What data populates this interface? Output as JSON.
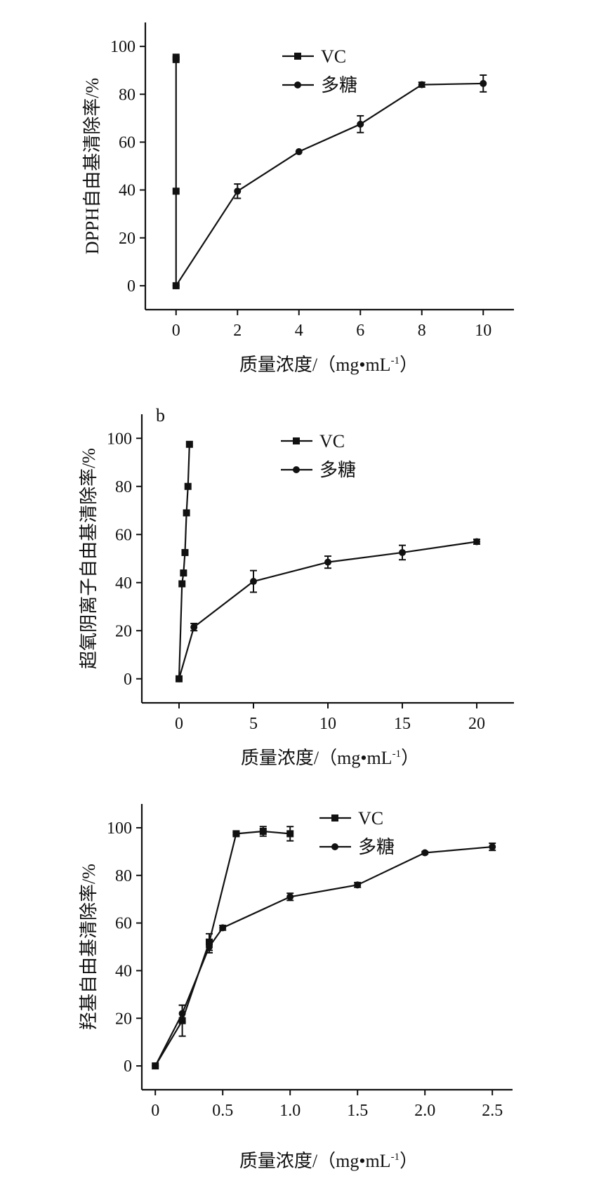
{
  "chart_data": [
    {
      "type": "line",
      "panel_label": "",
      "xlabel": "质量浓度/（mg•mL-1）",
      "ylabel": "DPPH自由基清除率/%",
      "xlim": [
        -1,
        11
      ],
      "ylim": [
        -10,
        110
      ],
      "xticks": [
        0,
        2,
        4,
        6,
        8,
        10
      ],
      "xtick_labels": [
        "0",
        "2",
        "4",
        "6",
        "8",
        "10"
      ],
      "yticks": [
        0,
        20,
        40,
        60,
        80,
        100
      ],
      "ytick_labels": [
        "0",
        "20",
        "40",
        "60",
        "80",
        "100"
      ],
      "legend_position": "top-center",
      "series": [
        {
          "name": "VC",
          "marker": "square",
          "x": [
            0,
            0,
            0,
            0
          ],
          "y": [
            0,
            39.5,
            94.5,
            95.5
          ],
          "err": [
            0,
            0,
            0,
            0
          ]
        },
        {
          "name": "多糖",
          "marker": "circle",
          "x": [
            0,
            2,
            4,
            6,
            8,
            10
          ],
          "y": [
            0,
            39.5,
            56,
            67.5,
            84,
            84.5
          ],
          "err": [
            0,
            3,
            0,
            3.5,
            1,
            3.5
          ]
        }
      ]
    },
    {
      "type": "line",
      "panel_label": "b",
      "xlabel": "质量浓度/（mg•mL-1）",
      "ylabel": "超氧阴离子自由基清除率/%",
      "xlim": [
        -2.5,
        22.5
      ],
      "ylim": [
        -10,
        110
      ],
      "xticks": [
        0,
        5,
        10,
        15,
        20
      ],
      "xtick_labels": [
        "0",
        "5",
        "10",
        "15",
        "20"
      ],
      "yticks": [
        0,
        20,
        40,
        60,
        80,
        100
      ],
      "ytick_labels": [
        "0",
        "20",
        "40",
        "60",
        "80",
        "100"
      ],
      "legend_position": "top-center",
      "series": [
        {
          "name": "VC",
          "marker": "square",
          "x": [
            0,
            0.2,
            0.3,
            0.4,
            0.5,
            0.6,
            0.7
          ],
          "y": [
            0,
            39.5,
            44,
            52.5,
            69,
            80,
            97.5
          ],
          "err": [
            0,
            0,
            0,
            0,
            0,
            0,
            0
          ]
        },
        {
          "name": "多糖",
          "marker": "circle",
          "x": [
            0,
            1,
            5,
            10,
            15,
            20
          ],
          "y": [
            0,
            21.5,
            40.5,
            48.5,
            52.5,
            57
          ],
          "err": [
            0,
            1.5,
            4.5,
            2.5,
            3,
            1
          ]
        }
      ]
    },
    {
      "type": "line",
      "panel_label": "",
      "xlabel": "质量浓度/（mg•mL-1）",
      "ylabel": "羟基自由基清除率/%",
      "xlim": [
        -0.1,
        2.65
      ],
      "ylim": [
        -10,
        110
      ],
      "xticks": [
        0,
        0.5,
        1.0,
        1.5,
        2.0,
        2.5
      ],
      "xtick_labels": [
        "0",
        "0.5",
        "1.0",
        "1.5",
        "2.0",
        "2.5"
      ],
      "yticks": [
        0,
        20,
        40,
        60,
        80,
        100
      ],
      "ytick_labels": [
        "0",
        "20",
        "40",
        "60",
        "80",
        "100"
      ],
      "legend_position": "top-right",
      "series": [
        {
          "name": "VC",
          "marker": "square",
          "x": [
            0,
            0.2,
            0.4,
            0.6,
            0.8,
            1.0
          ],
          "y": [
            0,
            19,
            52,
            97.5,
            98.5,
            97.5
          ],
          "err": [
            0,
            6.5,
            3.5,
            0.5,
            2,
            3
          ]
        },
        {
          "name": "多糖",
          "marker": "circle",
          "x": [
            0,
            0.2,
            0.4,
            0.5,
            1.0,
            1.5,
            2.0,
            2.5
          ],
          "y": [
            0,
            22,
            50,
            58,
            71,
            76,
            89.5,
            92
          ],
          "err": [
            0,
            3.5,
            2.5,
            1,
            1.5,
            1,
            0.5,
            1.5
          ]
        }
      ]
    }
  ]
}
